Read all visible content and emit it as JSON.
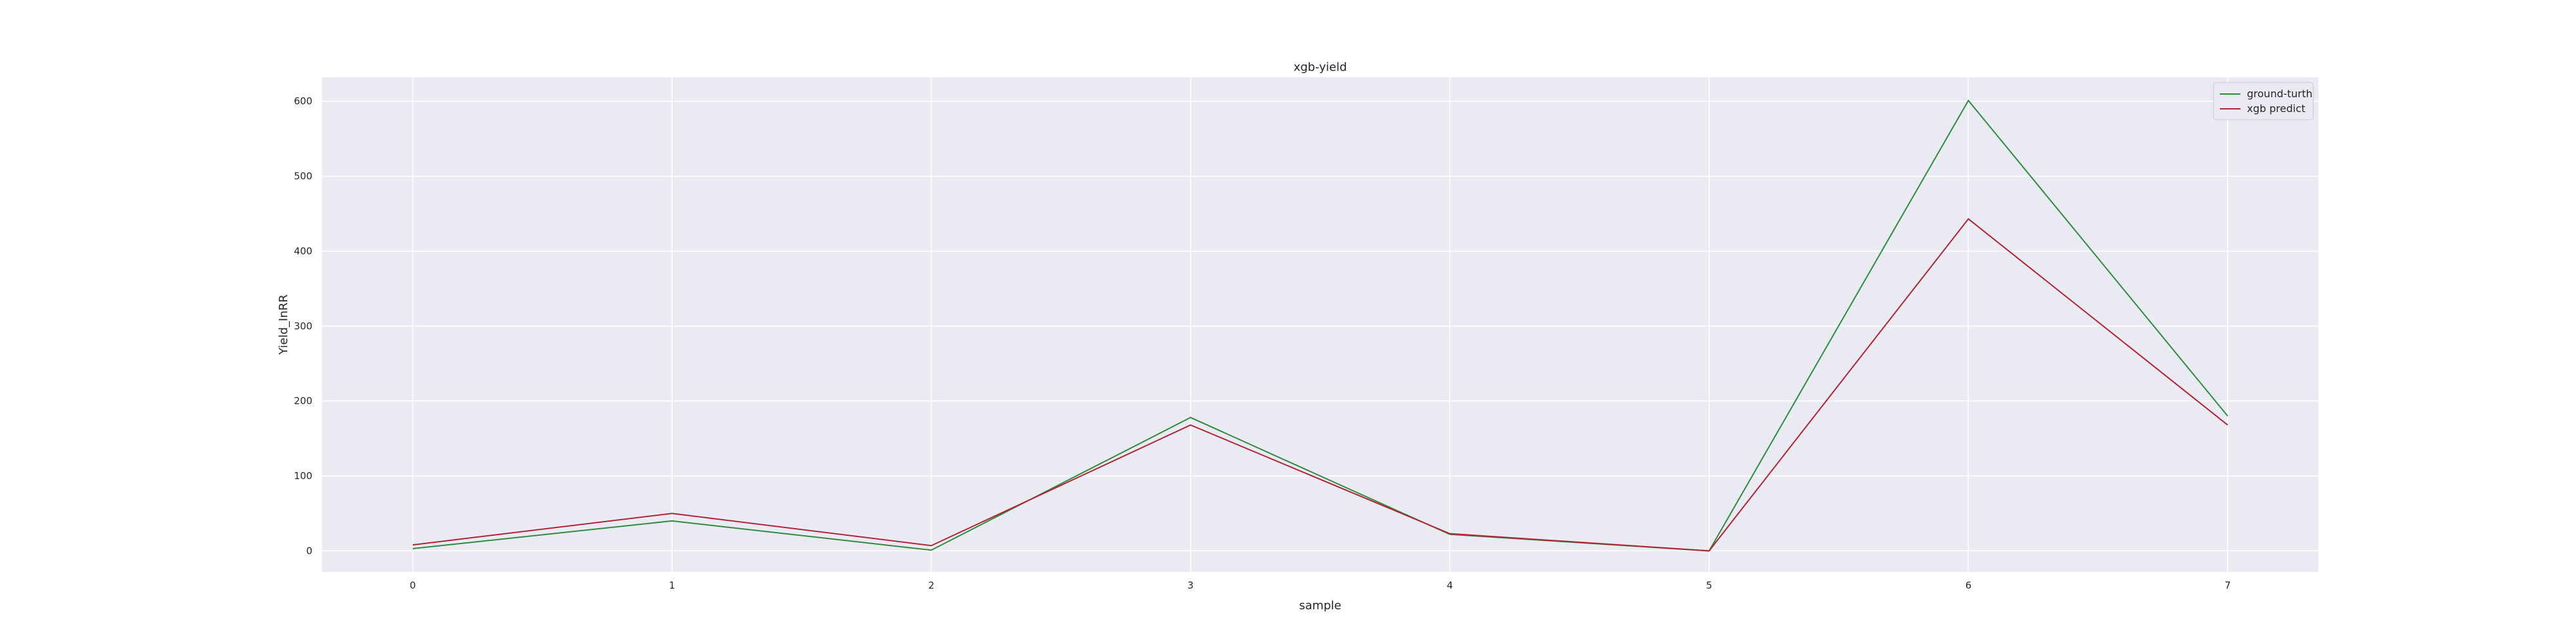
{
  "chart_data": {
    "type": "line",
    "title": "xgb-yield",
    "xlabel": "sample",
    "ylabel": "Yield_InRR",
    "x": [
      0,
      1,
      2,
      3,
      4,
      5,
      6,
      7
    ],
    "xlim": [
      -0.35,
      7.35
    ],
    "ylim": [
      -28,
      632
    ],
    "yticks": [
      0,
      100,
      200,
      300,
      400,
      500,
      600
    ],
    "xticks": [
      0,
      1,
      2,
      3,
      4,
      5,
      6,
      7
    ],
    "grid": true,
    "legend_position": "top-right",
    "series": [
      {
        "name": "ground-turth",
        "color": "#2e8b3d",
        "values": [
          3,
          40,
          1,
          178,
          22,
          0,
          601,
          180
        ]
      },
      {
        "name": "xgb predict",
        "color": "#b22234",
        "values": [
          8,
          50,
          7,
          168,
          23,
          0,
          443,
          168
        ]
      }
    ]
  },
  "colors": {
    "plot_background": "#eaeaf2",
    "grid": "#ffffff"
  }
}
